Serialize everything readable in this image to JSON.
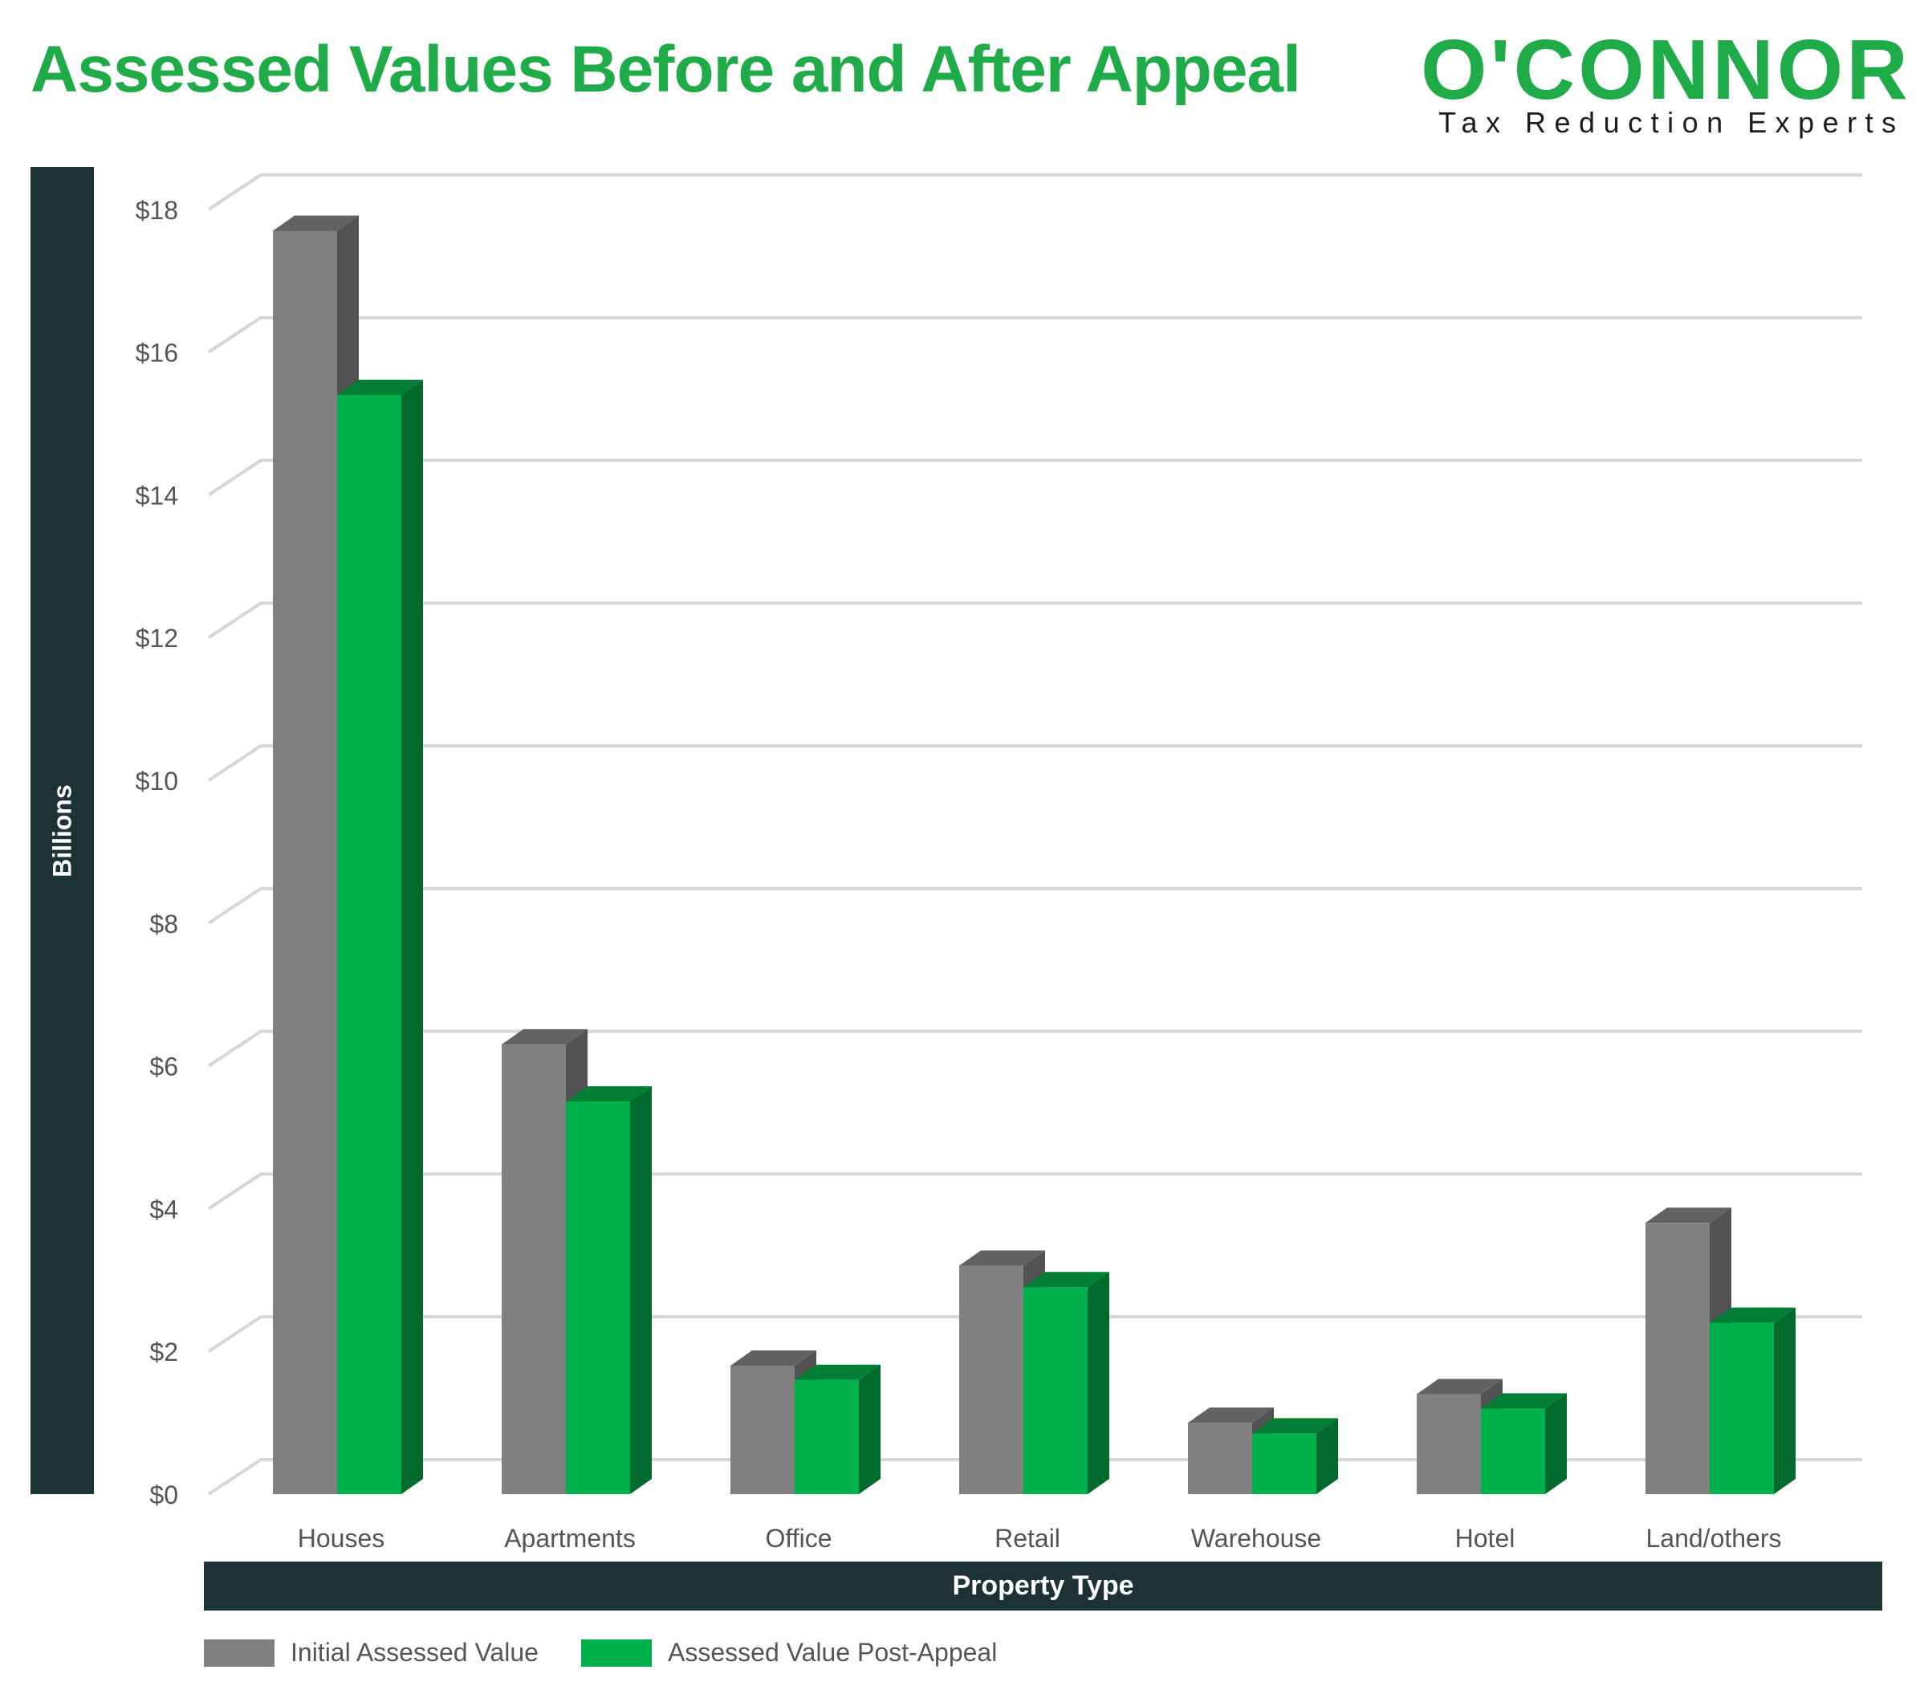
{
  "title": "Assessed Values Before and After Appeal",
  "logo": {
    "wordmark": "O'CONNOR",
    "tagline": "Tax Reduction Experts",
    "color": "#1fac48"
  },
  "chart_data": {
    "type": "bar",
    "style": "3d-clustered",
    "title": "Assessed Values Before and After Appeal",
    "xlabel": "Property Type",
    "ylabel": "Billions",
    "categories": [
      "Houses",
      "Apartments",
      "Office",
      "Retail",
      "Warehouse",
      "Hotel",
      "Land/others"
    ],
    "series": [
      {
        "name": "Initial Assessed Value",
        "color": "#808080",
        "top_color": "#626262",
        "side_color": "#525252",
        "values": [
          17.7,
          6.3,
          1.8,
          3.2,
          1.0,
          1.4,
          3.8
        ]
      },
      {
        "name": "Assessed Value Post-Appeal",
        "color": "#00b04b",
        "top_color": "#007e35",
        "side_color": "#006b2d",
        "values": [
          15.4,
          5.5,
          1.6,
          2.9,
          0.85,
          1.2,
          2.4
        ]
      }
    ],
    "ylim": [
      0,
      18
    ],
    "yticks": [
      0,
      2,
      4,
      6,
      8,
      10,
      12,
      14,
      16,
      18
    ],
    "ytick_labels": [
      "$0",
      "$2",
      "$4",
      "$6",
      "$8",
      "$10",
      "$12",
      "$14",
      "$16",
      "$18"
    ],
    "grid": true,
    "legend_position": "bottom-left"
  }
}
